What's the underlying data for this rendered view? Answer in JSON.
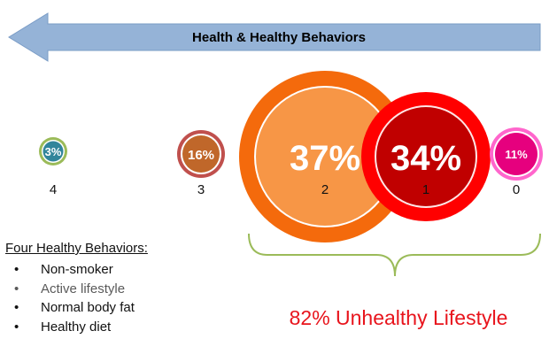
{
  "header": {
    "title": "Health & Healthy Behaviors",
    "arrow_color": "#95b3d7"
  },
  "groups": [
    {
      "behaviors": "4",
      "percent_label": "3%",
      "value": 3,
      "fill": "#31859b",
      "ring": "#9bbb59"
    },
    {
      "behaviors": "3",
      "percent_label": "16%",
      "value": 16,
      "fill": "#c0672a",
      "ring": "#c0504d"
    },
    {
      "behaviors": "2",
      "percent_label": "37%",
      "value": 37,
      "fill": "#f79646",
      "ring": "#f46a0c"
    },
    {
      "behaviors": "1",
      "percent_label": "34%",
      "value": 34,
      "fill": "#c00000",
      "ring": "#ff0000"
    },
    {
      "behaviors": "0",
      "percent_label": "11%",
      "value": 11,
      "fill": "#e6007e",
      "ring": "#ff66cc"
    }
  ],
  "legend": {
    "title": "Four Healthy Behaviors:",
    "items": [
      "Non-smoker",
      "Active lifestyle",
      "Normal body fat",
      "Healthy diet"
    ]
  },
  "bracket_color": "#9bbb59",
  "summary": "82% Unhealthy Lifestyle"
}
